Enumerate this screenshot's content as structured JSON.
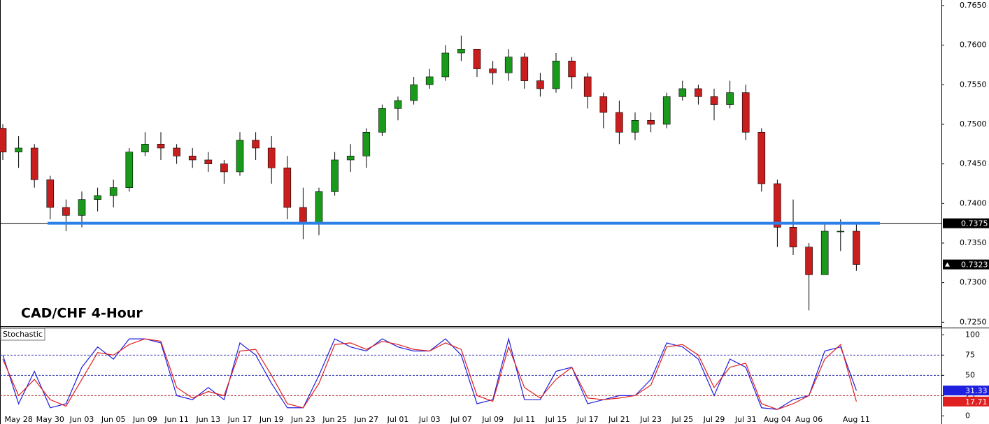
{
  "chart_data": [
    {
      "type": "candlestick",
      "title": "CAD/CHF 4-Hour",
      "categories": [
        null,
        "May 28",
        null,
        "May 30",
        null,
        "Jun 03",
        null,
        "Jun 05",
        null,
        "Jun 09",
        null,
        "Jun 11",
        null,
        "Jun 13",
        null,
        "Jun 17",
        null,
        "Jun 19",
        null,
        "Jun 23",
        null,
        "Jun 25",
        null,
        "Jun 27",
        null,
        "Jul 01",
        null,
        "Jul 03",
        null,
        "Jul 07",
        null,
        "Jul 09",
        null,
        "Jul 11",
        null,
        "Jul 15",
        null,
        "Jul 17",
        null,
        "Jul 21",
        null,
        "Jul 23",
        null,
        "Jul 25",
        null,
        "Jul 29",
        null,
        "Jul 31",
        null,
        "Aug 04",
        null,
        "Aug 06",
        null,
        null,
        "Aug 11"
      ],
      "open": [
        0.7495,
        0.7465,
        0.747,
        0.743,
        0.7395,
        0.7385,
        0.7405,
        0.741,
        0.742,
        0.7465,
        0.7475,
        0.747,
        0.746,
        0.7455,
        0.745,
        0.744,
        0.748,
        0.747,
        0.7445,
        0.7395,
        0.7375,
        0.7415,
        0.7455,
        0.746,
        0.749,
        0.752,
        0.753,
        0.755,
        0.756,
        0.759,
        0.7595,
        0.757,
        0.7565,
        0.7585,
        0.7555,
        0.7545,
        0.758,
        0.756,
        0.7535,
        0.7515,
        0.749,
        0.7505,
        0.75,
        0.7535,
        0.7545,
        0.7535,
        0.7525,
        0.754,
        0.749,
        0.7425,
        0.737,
        0.7345,
        0.731,
        0.7365,
        0.7365
      ],
      "high": [
        0.75,
        0.7485,
        0.7475,
        0.7435,
        0.7405,
        0.7415,
        0.742,
        0.743,
        0.747,
        0.749,
        0.749,
        0.7475,
        0.747,
        0.7465,
        0.7455,
        0.749,
        0.749,
        0.7485,
        0.746,
        0.742,
        0.742,
        0.7465,
        0.7475,
        0.7495,
        0.7525,
        0.7535,
        0.756,
        0.757,
        0.76,
        0.7612,
        0.7595,
        0.758,
        0.7595,
        0.759,
        0.7565,
        0.759,
        0.7585,
        0.7565,
        0.754,
        0.753,
        0.7515,
        0.7515,
        0.754,
        0.7555,
        0.755,
        0.7545,
        0.7555,
        0.755,
        0.7495,
        0.743,
        0.7405,
        0.735,
        0.7375,
        0.738,
        0.7375
      ],
      "low": [
        0.7455,
        0.7445,
        0.742,
        0.738,
        0.7365,
        0.737,
        0.739,
        0.7395,
        0.7415,
        0.746,
        0.7455,
        0.745,
        0.7445,
        0.744,
        0.7425,
        0.7435,
        0.7455,
        0.7425,
        0.738,
        0.7355,
        0.736,
        0.741,
        0.744,
        0.7445,
        0.7485,
        0.7505,
        0.7525,
        0.7545,
        0.7555,
        0.758,
        0.756,
        0.755,
        0.7555,
        0.7545,
        0.7535,
        0.754,
        0.7545,
        0.752,
        0.7495,
        0.7475,
        0.748,
        0.749,
        0.7495,
        0.753,
        0.7525,
        0.7505,
        0.752,
        0.748,
        0.7415,
        0.7345,
        0.7335,
        0.7265,
        0.731,
        0.734,
        0.7315
      ],
      "close": [
        0.7465,
        0.747,
        0.743,
        0.7395,
        0.7385,
        0.7405,
        0.741,
        0.742,
        0.7465,
        0.7475,
        0.747,
        0.746,
        0.7455,
        0.745,
        0.744,
        0.748,
        0.747,
        0.7445,
        0.7395,
        0.7375,
        0.7415,
        0.7455,
        0.746,
        0.749,
        0.752,
        0.753,
        0.755,
        0.756,
        0.759,
        0.7595,
        0.757,
        0.7565,
        0.7585,
        0.7555,
        0.7545,
        0.758,
        0.756,
        0.7535,
        0.7515,
        0.749,
        0.7505,
        0.75,
        0.7535,
        0.7545,
        0.7535,
        0.7525,
        0.754,
        0.749,
        0.7425,
        0.737,
        0.7345,
        0.731,
        0.7365,
        0.7365,
        0.7323
      ],
      "up_color": "#1a9a1a",
      "down_color": "#c81e1e",
      "ylim": [
        0.7245,
        0.7657
      ],
      "yticks": [
        {
          "value": 0.725,
          "label": "0.7250"
        },
        {
          "value": 0.73,
          "label": "0.7300"
        },
        {
          "value": 0.735,
          "label": "0.7350"
        },
        {
          "value": 0.74,
          "label": "0.7400"
        },
        {
          "value": 0.745,
          "label": "0.7450"
        },
        {
          "value": 0.75,
          "label": "0.7500"
        },
        {
          "value": 0.755,
          "label": "0.7550"
        },
        {
          "value": 0.76,
          "label": "0.7600"
        },
        {
          "value": 0.765,
          "label": "0.7650"
        }
      ],
      "support_line": 0.7375,
      "support_color": "#2f7fe8",
      "price_markers": [
        0.7375,
        0.7323
      ]
    },
    {
      "type": "line",
      "title": "Stochastic",
      "series": [
        {
          "color": "#1f1fe0",
          "values": [
            75,
            15,
            55,
            10,
            15,
            60,
            85,
            70,
            95,
            95,
            90,
            25,
            20,
            35,
            20,
            90,
            75,
            40,
            10,
            10,
            50,
            95,
            85,
            80,
            95,
            85,
            80,
            80,
            95,
            75,
            15,
            20,
            95,
            20,
            20,
            55,
            60,
            15,
            20,
            25,
            25,
            45,
            90,
            85,
            70,
            25,
            70,
            60,
            10,
            8,
            20,
            25,
            80,
            85,
            31.33
          ]
        },
        {
          "color": "#e01f1f",
          "values": [
            70,
            25,
            45,
            20,
            12,
            45,
            78,
            75,
            88,
            95,
            92,
            35,
            22,
            30,
            25,
            80,
            82,
            50,
            15,
            10,
            40,
            88,
            90,
            82,
            92,
            88,
            82,
            80,
            90,
            82,
            25,
            18,
            85,
            35,
            22,
            45,
            60,
            22,
            20,
            22,
            25,
            38,
            85,
            88,
            75,
            35,
            60,
            65,
            15,
            8,
            15,
            25,
            70,
            88,
            17.71
          ]
        }
      ],
      "ylim": [
        -10,
        108
      ],
      "yticks": [
        0,
        25,
        50,
        75,
        100
      ],
      "levels": [
        {
          "value": 75,
          "color": "#3030b0"
        },
        {
          "value": 50,
          "color": "#3030b0"
        },
        {
          "value": 25,
          "color": "#b03030"
        }
      ]
    }
  ]
}
